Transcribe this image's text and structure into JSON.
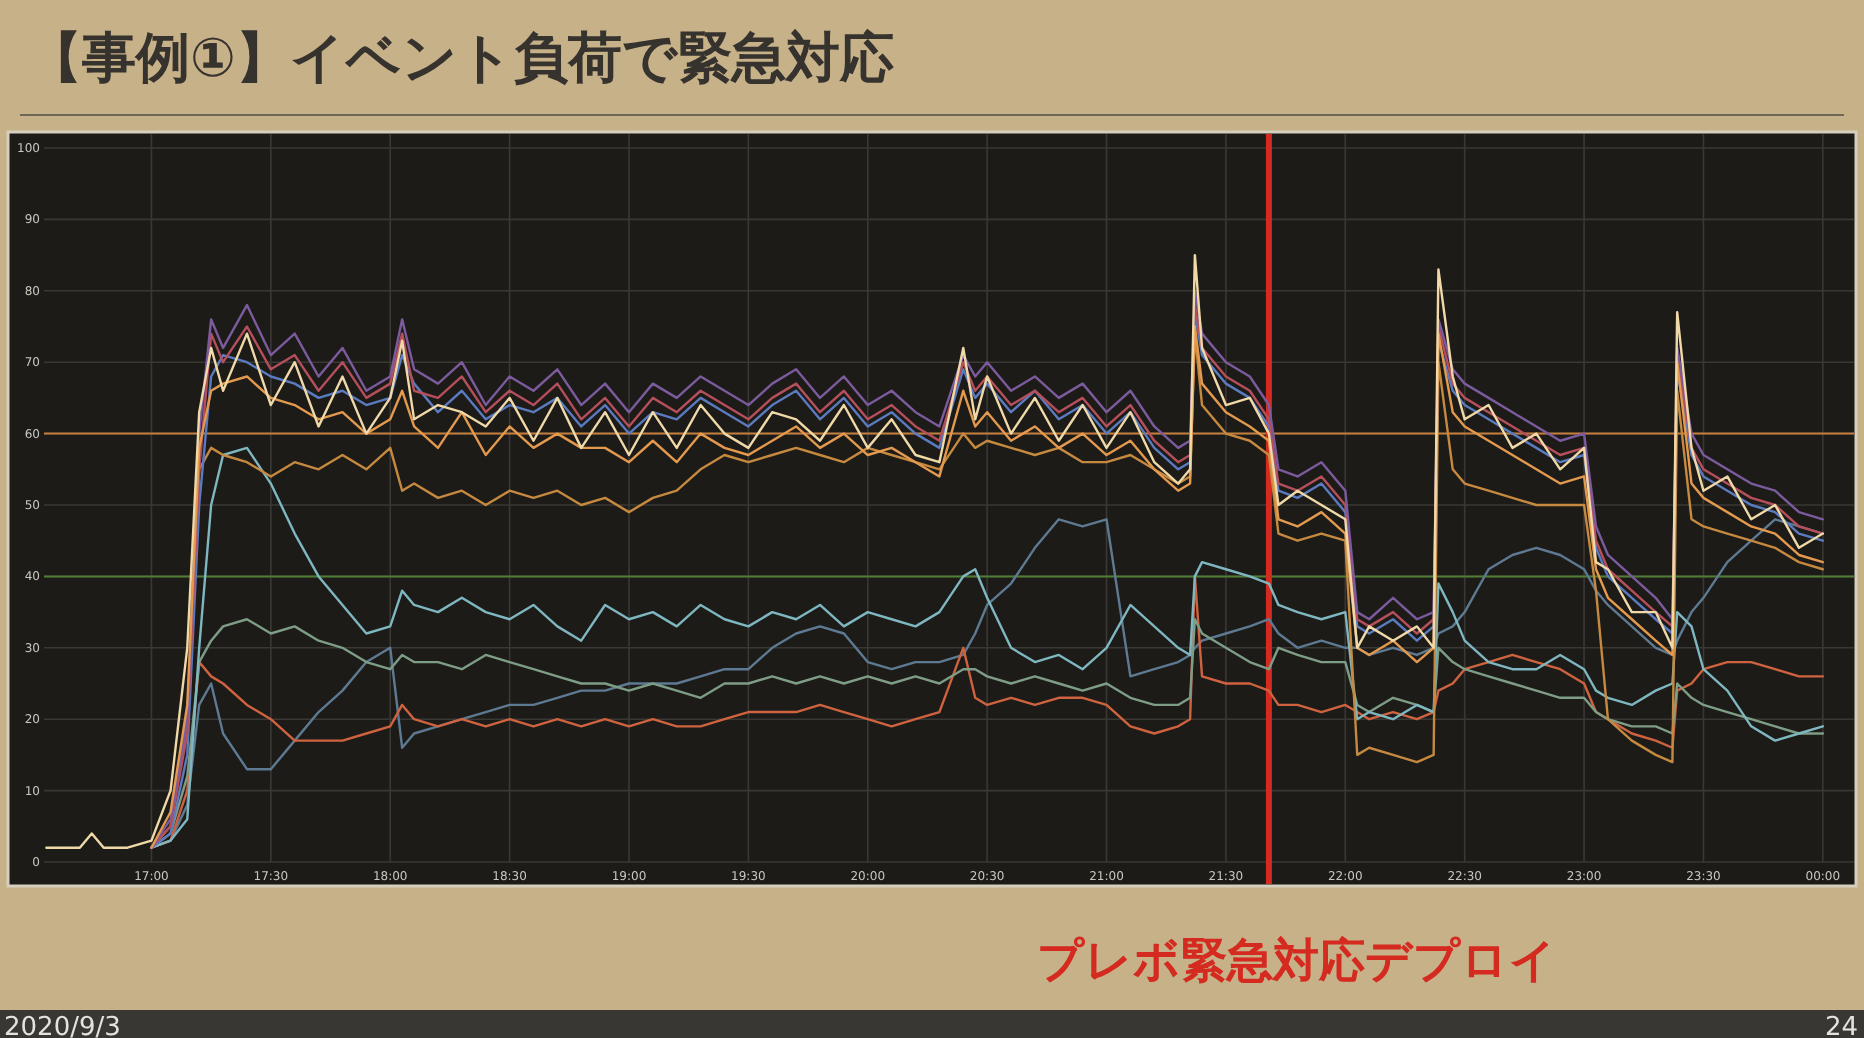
{
  "chart_data": {
    "type": "line",
    "title": "【事例①】イベント負荷で緊急対応",
    "annotations": [
      "2020/9/3",
      "24"
    ],
    "xlim": [
      16.55,
      24.03
    ],
    "ylim": [
      0,
      100
    ],
    "xticks": [
      {
        "value": 17,
        "label": "17:00"
      },
      {
        "value": 17.5,
        "label": "17:30"
      },
      {
        "value": 18,
        "label": "18:00"
      },
      {
        "value": 18.5,
        "label": "18:30"
      },
      {
        "value": 19,
        "label": "19:00"
      },
      {
        "value": 19.5,
        "label": "19:30"
      },
      {
        "value": 20,
        "label": "20:00"
      },
      {
        "value": 20.5,
        "label": "20:30"
      },
      {
        "value": 21,
        "label": "21:00"
      },
      {
        "value": 21.5,
        "label": "21:30"
      },
      {
        "value": 22,
        "label": "22:00"
      },
      {
        "value": 22.5,
        "label": "22:30"
      },
      {
        "value": 23,
        "label": "23:00"
      },
      {
        "value": 23.5,
        "label": "23:30"
      },
      {
        "value": 24,
        "label": "00:00"
      }
    ],
    "yticks": [
      0,
      10,
      20,
      30,
      40,
      50,
      60,
      70,
      80,
      90,
      100
    ],
    "grid": true,
    "line_style": "solid",
    "ref_lines": [
      {
        "axis": "y",
        "value": 60,
        "color": "#c47f3c"
      },
      {
        "axis": "y",
        "value": 40,
        "color": "#4f7d33"
      },
      {
        "axis": "x",
        "value": 21.68,
        "color": "#d42a1f",
        "label": "プレボ緊急対応デプロイ"
      }
    ],
    "x": [
      16.56,
      16.7,
      16.75,
      16.8,
      16.9,
      17.0,
      17.08,
      17.15,
      17.2,
      17.25,
      17.3,
      17.4,
      17.5,
      17.6,
      17.7,
      17.8,
      17.9,
      18.0,
      18.05,
      18.1,
      18.2,
      18.3,
      18.4,
      18.5,
      18.6,
      18.7,
      18.8,
      18.9,
      19.0,
      19.1,
      19.2,
      19.3,
      19.4,
      19.5,
      19.6,
      19.7,
      19.8,
      19.9,
      20.0,
      20.1,
      20.2,
      20.3,
      20.4,
      20.45,
      20.5,
      20.6,
      20.7,
      20.8,
      20.9,
      21.0,
      21.1,
      21.2,
      21.3,
      21.35,
      21.37,
      21.4,
      21.5,
      21.6,
      21.68,
      21.72,
      21.8,
      21.9,
      22.0,
      22.05,
      22.1,
      22.2,
      22.3,
      22.37,
      22.39,
      22.45,
      22.5,
      22.6,
      22.7,
      22.8,
      22.9,
      23.0,
      23.05,
      23.1,
      23.2,
      23.3,
      23.37,
      23.39,
      23.45,
      23.5,
      23.6,
      23.7,
      23.8,
      23.9,
      24.0
    ],
    "series": [
      {
        "color": "#5d7a92",
        "values": [
          null,
          null,
          null,
          null,
          null,
          2,
          3,
          8,
          22,
          25,
          18,
          13,
          13,
          17,
          21,
          24,
          28,
          30,
          16,
          18,
          19,
          20,
          21,
          22,
          22,
          23,
          24,
          24,
          25,
          25,
          25,
          26,
          27,
          27,
          30,
          32,
          33,
          32,
          28,
          27,
          28,
          28,
          29,
          32,
          36,
          39,
          44,
          48,
          47,
          48,
          26,
          27,
          28,
          29,
          30,
          31,
          32,
          33,
          34,
          32,
          30,
          31,
          30,
          30,
          29,
          30,
          29,
          30,
          32,
          33,
          35,
          41,
          43,
          44,
          43,
          41,
          38,
          36,
          33,
          30,
          29,
          31,
          35,
          37,
          42,
          45,
          48,
          47,
          46
        ]
      },
      {
        "color": "#cf6340",
        "values": [
          null,
          null,
          null,
          null,
          null,
          2,
          3,
          10,
          28,
          26,
          25,
          22,
          20,
          17,
          17,
          17,
          18,
          19,
          22,
          20,
          19,
          20,
          19,
          20,
          19,
          20,
          19,
          20,
          19,
          20,
          19,
          19,
          20,
          21,
          21,
          21,
          22,
          21,
          20,
          19,
          20,
          21,
          30,
          23,
          22,
          23,
          22,
          23,
          23,
          22,
          19,
          18,
          19,
          20,
          40,
          26,
          25,
          25,
          24,
          22,
          22,
          21,
          22,
          21,
          20,
          21,
          20,
          21,
          24,
          25,
          27,
          28,
          29,
          28,
          27,
          25,
          21,
          20,
          18,
          17,
          16,
          24,
          25,
          27,
          28,
          28,
          27,
          26,
          26
        ]
      },
      {
        "color": "#7e9d86",
        "values": [
          null,
          null,
          null,
          null,
          null,
          2,
          4,
          12,
          28,
          31,
          33,
          34,
          32,
          33,
          31,
          30,
          28,
          27,
          29,
          28,
          28,
          27,
          29,
          28,
          27,
          26,
          25,
          25,
          24,
          25,
          24,
          23,
          25,
          25,
          26,
          25,
          26,
          25,
          26,
          25,
          26,
          25,
          27,
          27,
          26,
          25,
          26,
          25,
          24,
          25,
          23,
          22,
          22,
          23,
          34,
          32,
          30,
          28,
          27,
          30,
          29,
          28,
          28,
          22,
          21,
          23,
          22,
          21,
          30,
          28,
          27,
          26,
          25,
          24,
          23,
          23,
          21,
          20,
          19,
          19,
          18,
          25,
          23,
          22,
          21,
          20,
          19,
          18,
          18
        ]
      },
      {
        "color": "#7fb7c1",
        "values": [
          null,
          null,
          null,
          null,
          null,
          2,
          3,
          6,
          30,
          50,
          57,
          58,
          53,
          46,
          40,
          36,
          32,
          33,
          38,
          36,
          35,
          37,
          35,
          34,
          36,
          33,
          31,
          36,
          34,
          35,
          33,
          36,
          34,
          33,
          35,
          34,
          36,
          33,
          35,
          34,
          33,
          35,
          40,
          41,
          37,
          30,
          28,
          29,
          27,
          30,
          36,
          33,
          30,
          29,
          40,
          42,
          41,
          40,
          39,
          36,
          35,
          34,
          35,
          20,
          21,
          20,
          22,
          21,
          39,
          35,
          31,
          28,
          27,
          27,
          29,
          27,
          24,
          23,
          22,
          24,
          25,
          35,
          33,
          27,
          24,
          19,
          17,
          18,
          19
        ]
      },
      {
        "color": "#c5893f",
        "values": [
          null,
          null,
          null,
          null,
          null,
          2,
          5,
          20,
          55,
          58,
          57,
          56,
          54,
          56,
          55,
          57,
          55,
          58,
          52,
          53,
          51,
          52,
          50,
          52,
          51,
          52,
          50,
          51,
          49,
          51,
          52,
          55,
          57,
          56,
          57,
          58,
          57,
          56,
          58,
          57,
          56,
          55,
          60,
          58,
          59,
          58,
          57,
          58,
          56,
          56,
          57,
          55,
          53,
          54,
          74,
          64,
          60,
          59,
          57,
          46,
          45,
          46,
          45,
          15,
          16,
          15,
          14,
          15,
          70,
          55,
          53,
          52,
          51,
          50,
          50,
          50,
          38,
          20,
          17,
          15,
          14,
          66,
          48,
          47,
          46,
          45,
          44,
          42,
          41
        ]
      },
      {
        "color": "#5a7bbf",
        "values": [
          null,
          null,
          null,
          null,
          null,
          2,
          4,
          15,
          50,
          68,
          71,
          70,
          68,
          67,
          65,
          66,
          64,
          65,
          71,
          67,
          63,
          66,
          62,
          64,
          63,
          65,
          61,
          64,
          60,
          63,
          62,
          65,
          63,
          61,
          64,
          66,
          62,
          65,
          61,
          63,
          60,
          58,
          69,
          65,
          67,
          63,
          66,
          62,
          64,
          60,
          63,
          58,
          55,
          56,
          77,
          71,
          67,
          65,
          61,
          52,
          51,
          53,
          49,
          33,
          32,
          34,
          31,
          33,
          73,
          66,
          64,
          62,
          60,
          58,
          56,
          57,
          44,
          40,
          37,
          34,
          32,
          69,
          57,
          54,
          52,
          50,
          49,
          46,
          45
        ]
      },
      {
        "color": "#b54f5c",
        "values": [
          null,
          null,
          null,
          null,
          null,
          2,
          5,
          18,
          55,
          74,
          70,
          75,
          69,
          71,
          66,
          70,
          65,
          67,
          74,
          66,
          65,
          68,
          63,
          66,
          64,
          67,
          62,
          65,
          61,
          65,
          63,
          66,
          64,
          62,
          65,
          67,
          63,
          66,
          62,
          64,
          61,
          59,
          70,
          66,
          68,
          64,
          66,
          63,
          65,
          61,
          64,
          59,
          56,
          57,
          78,
          72,
          68,
          66,
          62,
          53,
          52,
          54,
          50,
          34,
          33,
          35,
          32,
          34,
          75,
          67,
          65,
          63,
          61,
          59,
          57,
          58,
          45,
          41,
          38,
          35,
          33,
          71,
          58,
          55,
          53,
          51,
          50,
          47,
          46
        ]
      },
      {
        "color": "#7b5b9d",
        "values": [
          null,
          null,
          null,
          null,
          null,
          2,
          6,
          20,
          60,
          76,
          72,
          78,
          71,
          74,
          68,
          72,
          66,
          68,
          76,
          69,
          67,
          70,
          64,
          68,
          66,
          69,
          64,
          67,
          63,
          67,
          65,
          68,
          66,
          64,
          67,
          69,
          65,
          68,
          64,
          66,
          63,
          61,
          71,
          68,
          70,
          66,
          68,
          65,
          67,
          63,
          66,
          61,
          58,
          59,
          80,
          74,
          70,
          68,
          64,
          55,
          54,
          56,
          52,
          35,
          34,
          37,
          34,
          35,
          76,
          69,
          67,
          65,
          63,
          61,
          59,
          60,
          47,
          43,
          40,
          37,
          34,
          72,
          60,
          57,
          55,
          53,
          52,
          49,
          48
        ]
      },
      {
        "color": "#e39a4f",
        "values": [
          null,
          null,
          null,
          null,
          null,
          2,
          7,
          22,
          58,
          66,
          67,
          68,
          65,
          64,
          62,
          63,
          60,
          62,
          66,
          61,
          58,
          63,
          57,
          61,
          58,
          60,
          58,
          58,
          56,
          59,
          56,
          60,
          58,
          57,
          59,
          61,
          58,
          60,
          57,
          58,
          56,
          54,
          66,
          61,
          63,
          59,
          61,
          58,
          60,
          57,
          59,
          55,
          52,
          53,
          75,
          67,
          63,
          61,
          59,
          48,
          47,
          49,
          46,
          30,
          29,
          31,
          28,
          30,
          74,
          63,
          61,
          59,
          57,
          55,
          53,
          54,
          41,
          37,
          34,
          31,
          29,
          70,
          53,
          51,
          49,
          47,
          46,
          43,
          42
        ]
      },
      {
        "color": "#f0d9a8",
        "values": [
          2,
          2,
          4,
          2,
          2,
          3,
          10,
          30,
          63,
          72,
          66,
          74,
          64,
          70,
          61,
          68,
          60,
          65,
          73,
          62,
          64,
          63,
          61,
          65,
          59,
          65,
          58,
          63,
          57,
          63,
          58,
          64,
          60,
          58,
          63,
          62,
          59,
          64,
          58,
          62,
          57,
          56,
          72,
          62,
          68,
          60,
          65,
          59,
          64,
          58,
          63,
          56,
          53,
          55,
          85,
          72,
          64,
          65,
          60,
          50,
          52,
          50,
          48,
          30,
          33,
          31,
          33,
          30,
          83,
          68,
          62,
          64,
          58,
          60,
          55,
          58,
          42,
          41,
          35,
          35,
          30,
          77,
          58,
          52,
          54,
          48,
          50,
          44,
          46
        ]
      }
    ]
  }
}
